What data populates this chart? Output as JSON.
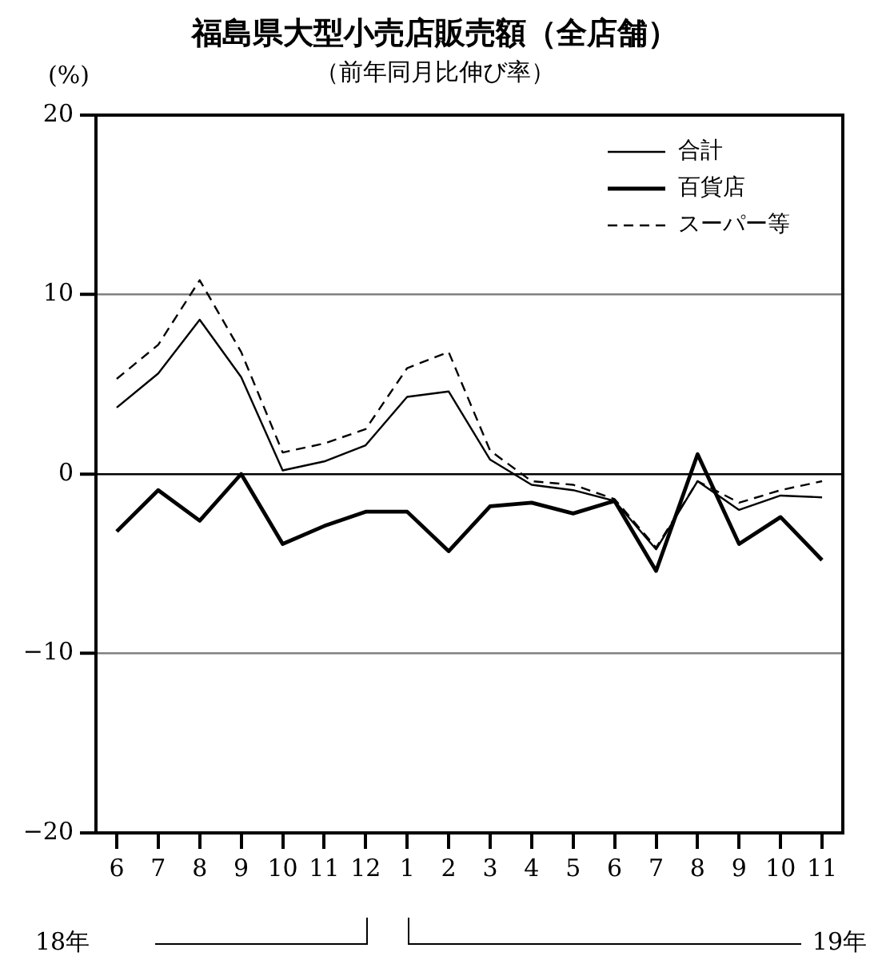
{
  "chart_data": {
    "type": "line",
    "title": "福島県大型小売店販売額（全店舗）",
    "subtitle": "（前年同月比伸び率）",
    "ylabel": "(%)",
    "categories": [
      "6",
      "7",
      "8",
      "9",
      "10",
      "11",
      "12",
      "1",
      "2",
      "3",
      "4",
      "5",
      "6",
      "7",
      "8",
      "9",
      "10",
      "11"
    ],
    "series": [
      {
        "name": "合計",
        "color": "#000000",
        "line_style": "solid",
        "values": [
          3.7,
          5.6,
          8.6,
          5.4,
          0.2,
          0.7,
          1.6,
          4.3,
          4.6,
          0.8,
          -0.6,
          -0.9,
          -1.5,
          -4.2,
          -0.4,
          -2.0,
          -1.2,
          -1.3
        ]
      },
      {
        "name": "百貨店",
        "color": "#000000",
        "line_style": "solid",
        "values": [
          -3.2,
          -0.9,
          -2.6,
          0,
          -3.9,
          -2.9,
          -2.1,
          -2.1,
          -4.3,
          -1.8,
          -1.6,
          -2.2,
          -1.5,
          -5.4,
          1.1,
          -3.9,
          -2.4,
          -4.8
        ]
      },
      {
        "name": "スーパー等",
        "color": "#000000",
        "line_style": "dashed",
        "values": [
          5.3,
          7.2,
          10.8,
          6.8,
          1.2,
          1.7,
          2.5,
          5.9,
          6.8,
          1.3,
          -0.4,
          -0.6,
          -1.4,
          -4.1,
          -0.4,
          -1.6,
          -0.9,
          -0.4
        ]
      }
    ],
    "ylim": [
      -20,
      20
    ],
    "yticks": [
      -20,
      -10,
      0,
      10,
      20
    ],
    "grid": "y",
    "legend": "top right",
    "marker": "none",
    "annotations": [
      "18年",
      "19年"
    ]
  }
}
